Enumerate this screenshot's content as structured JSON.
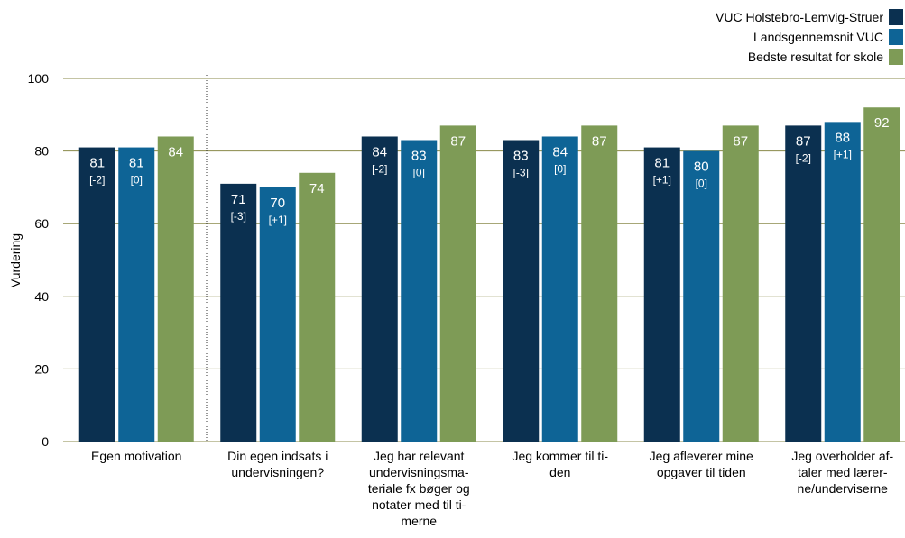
{
  "chart_data": {
    "type": "bar",
    "ylabel": "Vurdering",
    "ylim": [
      0,
      100
    ],
    "yticks": [
      0,
      20,
      40,
      60,
      80,
      100
    ],
    "grid": true,
    "legend_position": "top-right",
    "categories": [
      [
        "Egen motivation"
      ],
      [
        "Din egen indsats i",
        "undervisningen?"
      ],
      [
        "Jeg har relevant",
        "undervisningsma-",
        "teriale fx bøger og",
        "notater med til ti-",
        "merne"
      ],
      [
        "Jeg kommer til ti-",
        "den"
      ],
      [
        "Jeg afleverer mine",
        "opgaver til tiden"
      ],
      [
        "Jeg overholder af-",
        "taler med lærer-",
        "ne/underviserne"
      ]
    ],
    "series": [
      {
        "name": "VUC Holstebro-Lemvig-Struer",
        "color": "#0b3050",
        "values": [
          81,
          71,
          84,
          83,
          81,
          87
        ],
        "deltas": [
          "[-2]",
          "[-3]",
          "[-2]",
          "[-3]",
          "[+1]",
          "[-2]"
        ]
      },
      {
        "name": "Landsgennemsnit VUC",
        "color": "#0e6496",
        "values": [
          81,
          70,
          83,
          84,
          80,
          88
        ],
        "deltas": [
          "[0]",
          "[+1]",
          "[0]",
          "[0]",
          "[0]",
          "[+1]"
        ]
      },
      {
        "name": "Bedste resultat for skole",
        "color": "#7e9b56",
        "values": [
          84,
          74,
          87,
          87,
          87,
          92
        ],
        "deltas": [
          "",
          "",
          "",
          "",
          "",
          ""
        ]
      }
    ],
    "separator_after_category": 0,
    "label_values": [
      [
        81,
        71,
        84,
        83,
        81,
        87
      ],
      [
        81,
        70,
        83,
        84,
        80,
        88
      ],
      [
        84,
        74,
        87,
        87,
        87,
        92
      ]
    ]
  }
}
